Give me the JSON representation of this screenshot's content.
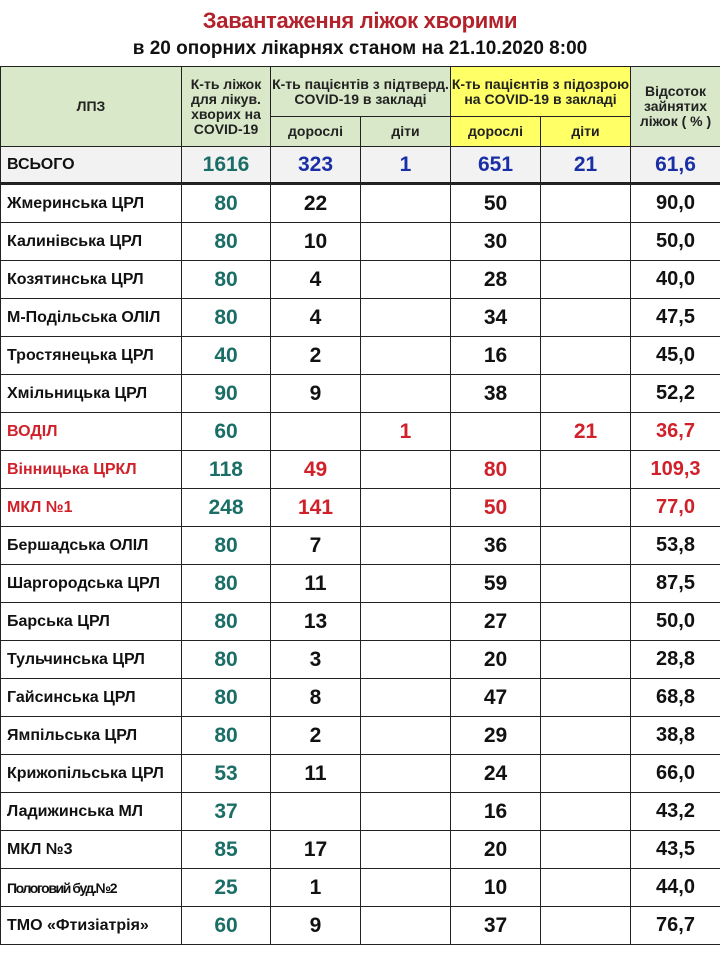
{
  "title": "Завантаження ліжок хворими",
  "subtitle": "в 20 опорних лікарнях станом  на 21.10.2020  8:00",
  "headers": {
    "facility": "ЛПЗ",
    "beds": "К-ть ліжок для лікув. хворих на COVID-19",
    "confirmed": "К-ть пацієнтів з підтверд. COVID-19 в закладі",
    "suspected": "К-ть пацієнтів з підозрою на  COVID-19 в закладі",
    "percent": "Відсоток зайнятих ліжок ( % )",
    "adults": "дорослі",
    "children": "діти"
  },
  "colors": {
    "title": "#b3222b",
    "header": "#d8e8c8",
    "suspected_header": "#ffff66",
    "beds": "#1a6e66",
    "total": "#1a2fa6",
    "highlight": "#d0202a"
  },
  "total": {
    "name": "ВСЬОГО",
    "beds": "1616",
    "conf_adults": "323",
    "conf_children": "1",
    "susp_adults": "651",
    "susp_children": "21",
    "pct": "61,6"
  },
  "rows": [
    {
      "name": "Жмеринська ЦРЛ",
      "beds": "80",
      "conf_adults": "22",
      "conf_children": "",
      "susp_adults": "50",
      "susp_children": "",
      "pct": "90,0"
    },
    {
      "name": "Калинівська ЦРЛ",
      "beds": "80",
      "conf_adults": "10",
      "conf_children": "",
      "susp_adults": "30",
      "susp_children": "",
      "pct": "50,0"
    },
    {
      "name": "Козятинська ЦРЛ",
      "beds": "80",
      "conf_adults": "4",
      "conf_children": "",
      "susp_adults": "28",
      "susp_children": "",
      "pct": "40,0"
    },
    {
      "name": "М-Подільська ОЛІЛ",
      "beds": "80",
      "conf_adults": "4",
      "conf_children": "",
      "susp_adults": "34",
      "susp_children": "",
      "pct": "47,5"
    },
    {
      "name": "Тростянецька ЦРЛ",
      "beds": "40",
      "conf_adults": "2",
      "conf_children": "",
      "susp_adults": "16",
      "susp_children": "",
      "pct": "45,0"
    },
    {
      "name": "Хмільницька ЦРЛ",
      "beds": "90",
      "conf_adults": "9",
      "conf_children": "",
      "susp_adults": "38",
      "susp_children": "",
      "pct": "52,2"
    },
    {
      "name": "ВОДІЛ",
      "beds": "60",
      "conf_adults": "",
      "conf_children": "1",
      "susp_adults": "",
      "susp_children": "21",
      "pct": "36,7",
      "highlight": true
    },
    {
      "name": "Вінницька ЦРКЛ",
      "beds": "118",
      "conf_adults": "49",
      "conf_children": "",
      "susp_adults": "80",
      "susp_children": "",
      "pct": "109,3",
      "highlight": true
    },
    {
      "name": "МКЛ №1",
      "beds": "248",
      "conf_adults": "141",
      "conf_children": "",
      "susp_adults": "50",
      "susp_children": "",
      "pct": "77,0",
      "highlight": true
    },
    {
      "name": "Бершадська ОЛІЛ",
      "beds": "80",
      "conf_adults": "7",
      "conf_children": "",
      "susp_adults": "36",
      "susp_children": "",
      "pct": "53,8"
    },
    {
      "name": "Шаргородська  ЦРЛ",
      "beds": "80",
      "conf_adults": "11",
      "conf_children": "",
      "susp_adults": "59",
      "susp_children": "",
      "pct": "87,5"
    },
    {
      "name": "Барська ЦРЛ",
      "beds": "80",
      "conf_adults": "13",
      "conf_children": "",
      "susp_adults": "27",
      "susp_children": "",
      "pct": "50,0"
    },
    {
      "name": "Тульчинська ЦРЛ",
      "beds": "80",
      "conf_adults": "3",
      "conf_children": "",
      "susp_adults": "20",
      "susp_children": "",
      "pct": "28,8"
    },
    {
      "name": "Гайсинська ЦРЛ",
      "beds": "80",
      "conf_adults": "8",
      "conf_children": "",
      "susp_adults": "47",
      "susp_children": "",
      "pct": "68,8"
    },
    {
      "name": "Ямпільська ЦРЛ",
      "beds": "80",
      "conf_adults": "2",
      "conf_children": "",
      "susp_adults": "29",
      "susp_children": "",
      "pct": "38,8"
    },
    {
      "name": "Крижопільська ЦРЛ",
      "beds": "53",
      "conf_adults": "11",
      "conf_children": "",
      "susp_adults": "24",
      "susp_children": "",
      "pct": "66,0"
    },
    {
      "name": "Ладижинська МЛ",
      "beds": "37",
      "conf_adults": "",
      "conf_children": "",
      "susp_adults": "16",
      "susp_children": "",
      "pct": "43,2"
    },
    {
      "name": "МКЛ №3",
      "beds": "85",
      "conf_adults": "17",
      "conf_children": "",
      "susp_adults": "20",
      "susp_children": "",
      "pct": "43,5"
    },
    {
      "name": "Пологовий буд.№2",
      "beds": "25",
      "conf_adults": "1",
      "conf_children": "",
      "susp_adults": "10",
      "susp_children": "",
      "pct": "44,0",
      "narrow": true
    },
    {
      "name": "ТМО «Фтизіатрія»",
      "beds": "60",
      "conf_adults": "9",
      "conf_children": "",
      "susp_adults": "37",
      "susp_children": "",
      "pct": "76,7"
    }
  ]
}
